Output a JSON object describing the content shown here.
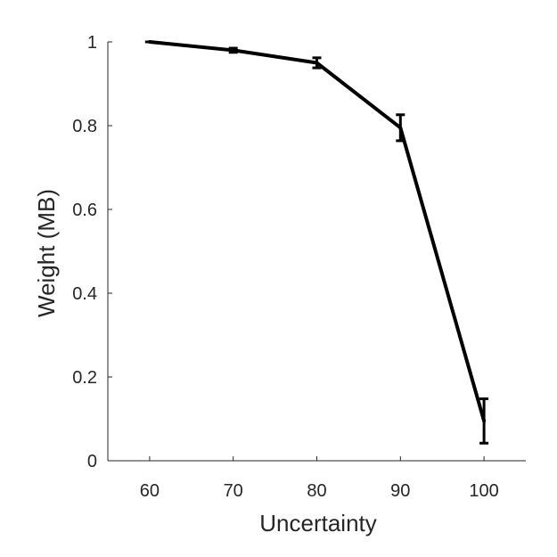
{
  "chart_data": {
    "type": "line",
    "title": "",
    "xlabel": "Uncertainty",
    "ylabel": "Weight (MB)",
    "xlim": [
      55,
      105
    ],
    "ylim": [
      0,
      1
    ],
    "xticks": [
      60,
      70,
      80,
      90,
      100
    ],
    "yticks": [
      0,
      0.2,
      0.4,
      0.6,
      0.8,
      1
    ],
    "ytick_labels": [
      "0",
      "0.2",
      "0.4",
      "0.6",
      "0.8",
      "1"
    ],
    "grid": false,
    "series": [
      {
        "x": [
          60,
          70,
          80,
          90,
          100
        ],
        "y": [
          1.0,
          0.98,
          0.95,
          0.795,
          0.095
        ],
        "yerr_low": [
          1.0,
          0.975,
          0.938,
          0.764,
          0.042
        ],
        "yerr_high": [
          1.0,
          0.985,
          0.962,
          0.826,
          0.148
        ],
        "color": "#000000"
      }
    ]
  }
}
